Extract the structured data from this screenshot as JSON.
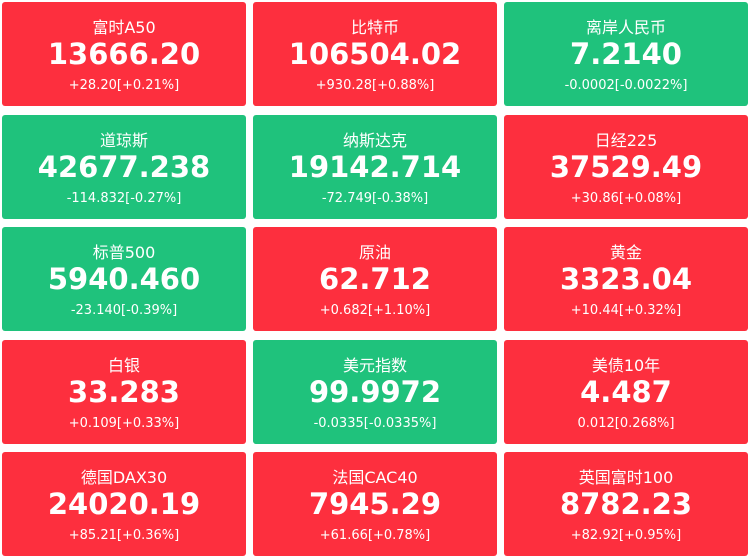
{
  "tiles": [
    {
      "name": "富时A50",
      "price": "13666.20",
      "change": "+28.20[+0.21%]",
      "color": "#fd2f3e"
    },
    {
      "name": "比特币",
      "price": "106504.02",
      "change": "+930.28[+0.88%]",
      "color": "#fd2f3e"
    },
    {
      "name": "离岸人民币",
      "price": "7.2140",
      "change": "-0.0002[-0.0022%]",
      "color": "#1fc27c"
    },
    {
      "name": "道琼斯",
      "price": "42677.238",
      "change": "-114.832[-0.27%]",
      "color": "#1fc27c"
    },
    {
      "name": "纳斯达克",
      "price": "19142.714",
      "change": "-72.749[-0.38%]",
      "color": "#1fc27c"
    },
    {
      "name": "日经225",
      "price": "37529.49",
      "change": "+30.86[+0.08%]",
      "color": "#fd2f3e"
    },
    {
      "name": "标普500",
      "price": "5940.460",
      "change": "-23.140[-0.39%]",
      "color": "#1fc27c"
    },
    {
      "name": "原油",
      "price": "62.712",
      "change": "+0.682[+1.10%]",
      "color": "#fd2f3e"
    },
    {
      "name": "黄金",
      "price": "3323.04",
      "change": "+10.44[+0.32%]",
      "color": "#fd2f3e"
    },
    {
      "name": "白银",
      "price": "33.283",
      "change": "+0.109[+0.33%]",
      "color": "#fd2f3e"
    },
    {
      "name": "美元指数",
      "price": "99.9972",
      "change": "-0.0335[-0.0335%]",
      "color": "#1fc27c"
    },
    {
      "name": "美债10年",
      "price": "4.487",
      "change": "0.012[0.268%]",
      "color": "#fd2f3e"
    },
    {
      "name": "德国DAX30",
      "price": "24020.19",
      "change": "+85.21[+0.36%]",
      "color": "#fd2f3e"
    },
    {
      "name": "法国CAC40",
      "price": "7945.29",
      "change": "+61.66[+0.78%]",
      "color": "#fd2f3e"
    },
    {
      "name": "英国富时100",
      "price": "8782.23",
      "change": "+82.92[+0.95%]",
      "color": "#fd2f3e"
    }
  ]
}
